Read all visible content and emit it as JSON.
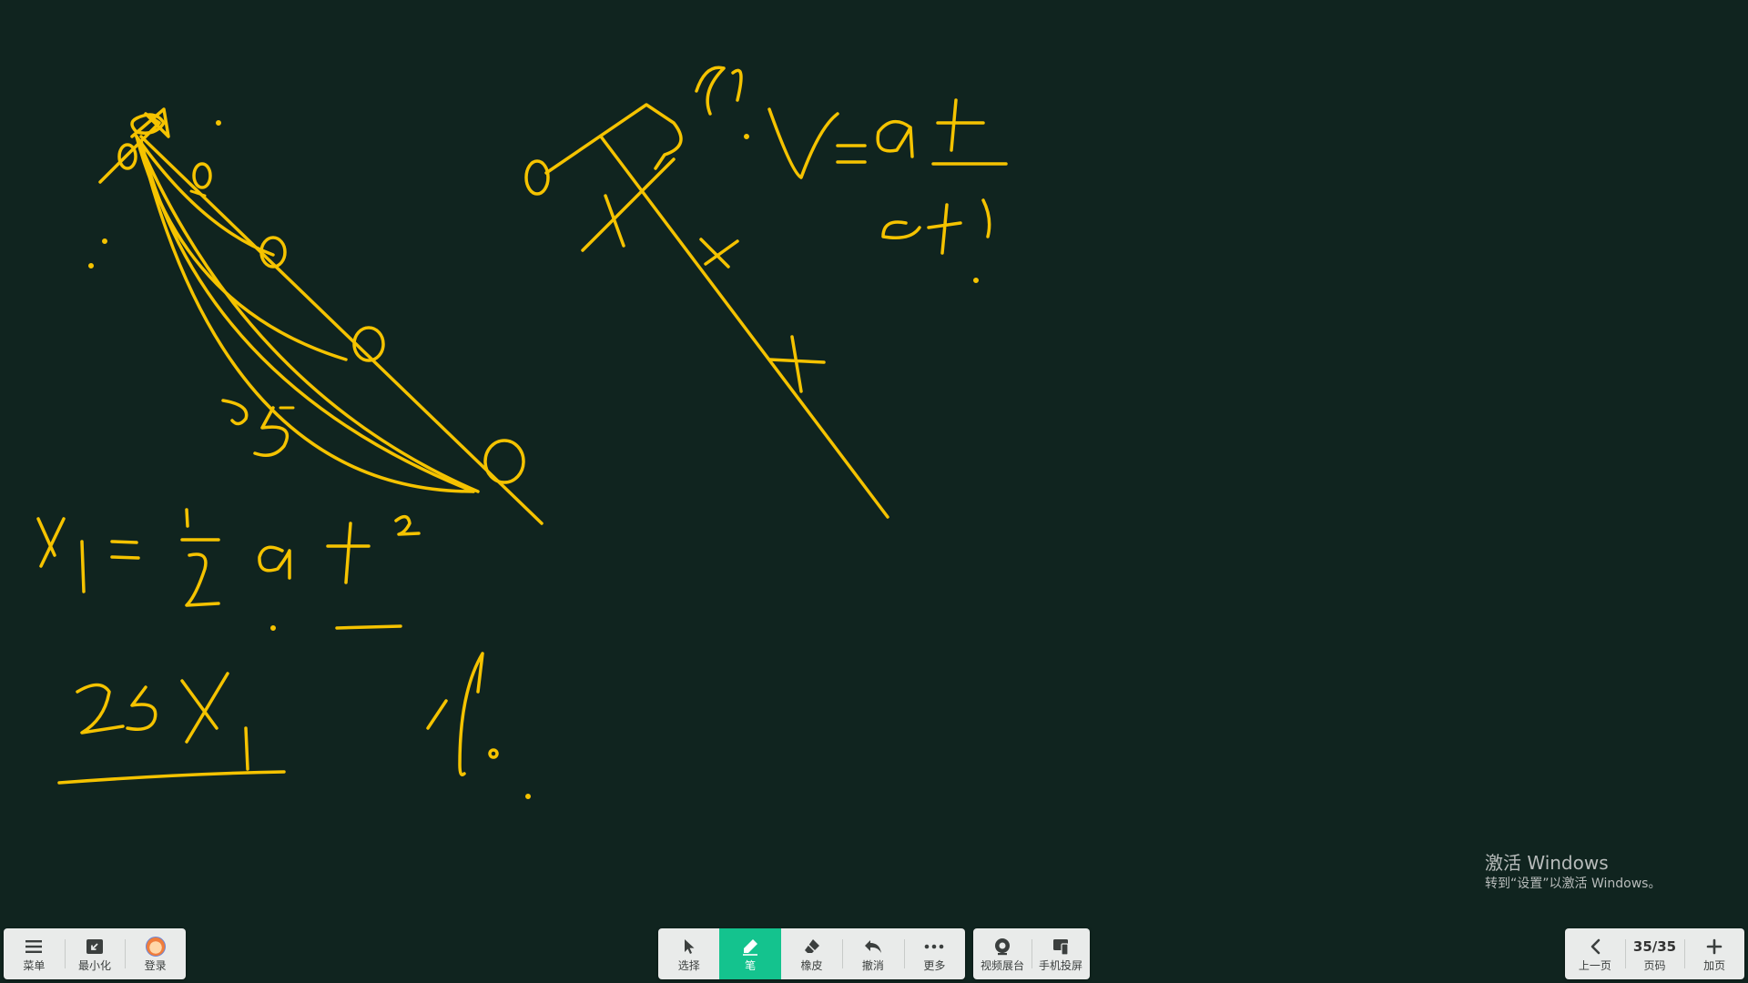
{
  "toolbar_left": {
    "menu_label": "菜单",
    "minimize_label": "最小化",
    "login_label": "登录"
  },
  "toolbar_center": {
    "select_label": "选择",
    "pen_label": "笔",
    "eraser_label": "橡皮",
    "undo_label": "撤消",
    "more_label": "更多"
  },
  "toolbar_right": {
    "camera_label": "视频展台",
    "cast_label": "手机投屏"
  },
  "pager": {
    "prev_label": "上一页",
    "page_indicator": "35/35",
    "page_label": "页码",
    "add_label": "加页"
  },
  "watermark": {
    "title": "激活 Windows",
    "subtitle": "转到“设置”以激活 Windows。"
  },
  "colors": {
    "board": "#10241f",
    "ink": "#f5c300",
    "active_tool": "#14c38e"
  },
  "icons": {
    "menu": "menu-icon",
    "minimize": "minimize-icon",
    "login": "avatar",
    "select": "cursor-icon",
    "pen": "pen-icon",
    "eraser": "eraser-icon",
    "undo": "undo-icon",
    "more": "more-icon",
    "camera": "camera-icon",
    "cast": "phone-cast-icon",
    "prev": "chevron-left-icon",
    "add": "plus-icon"
  }
}
